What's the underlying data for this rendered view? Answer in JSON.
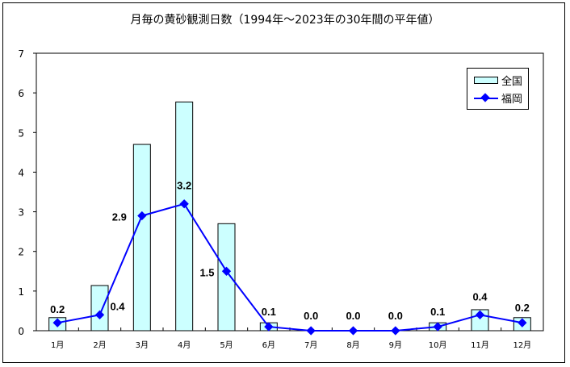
{
  "chart_data": {
    "type": "bar",
    "title": "月毎の黄砂観測日数（1994年～2023年の30年間の平年値）",
    "xlabel": "",
    "ylabel": "",
    "ylim": [
      0,
      7
    ],
    "yticks": [
      0,
      1,
      2,
      3,
      4,
      5,
      6,
      7
    ],
    "grid": false,
    "legend_position": "upper right",
    "categories": [
      "1月",
      "2月",
      "3月",
      "4月",
      "5月",
      "6月",
      "7月",
      "8月",
      "9月",
      "10月",
      "11月",
      "12月"
    ],
    "series": [
      {
        "name": "全国",
        "type": "bar",
        "color": "#ccffff",
        "values": [
          0.33,
          1.14,
          4.7,
          5.77,
          2.7,
          0.2,
          0.0,
          0.0,
          0.0,
          0.2,
          0.53,
          0.33
        ]
      },
      {
        "name": "福岡",
        "type": "line",
        "color": "#0000ff",
        "marker": "diamond",
        "values": [
          0.2,
          0.4,
          2.9,
          3.2,
          1.5,
          0.1,
          0.0,
          0.0,
          0.0,
          0.1,
          0.4,
          0.2
        ],
        "labels": [
          "0.2",
          "0.4",
          "2.9",
          "3.2",
          "1.5",
          "0.1",
          "0.0",
          "0.0",
          "0.0",
          "0.1",
          "0.4",
          "0.2"
        ]
      }
    ]
  },
  "legend": {
    "items": [
      {
        "label": "全国"
      },
      {
        "label": "福岡"
      }
    ]
  }
}
